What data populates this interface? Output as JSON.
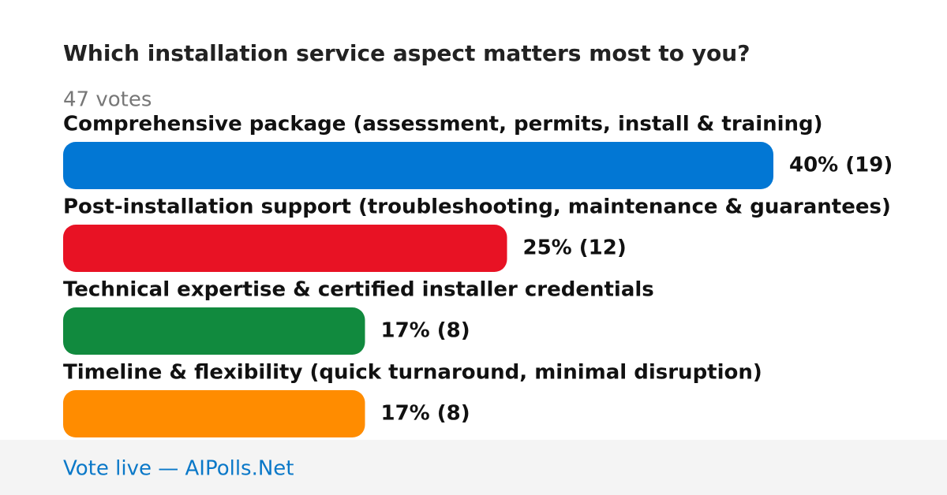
{
  "chart_data": {
    "type": "bar",
    "title": "Which installation service aspect matters most to you?",
    "subtitle": "47 votes",
    "categories": [
      "Comprehensive package (assessment, permits, install & training)",
      "Post-installation support (troubleshooting, maintenance & guarantees)",
      "Technical expertise & certified installer credentials",
      "Timeline & flexibility (quick turnaround, minimal disruption)"
    ],
    "values": [
      40,
      25,
      17,
      17
    ],
    "value_labels": [
      "40% (19)",
      "25% (12)",
      "17% (8)",
      "17% (8)"
    ],
    "colors": [
      "#0277d4",
      "#e81224",
      "#118a3e",
      "#ff8c00"
    ]
  },
  "footer": "Vote live — AIPolls.Net"
}
